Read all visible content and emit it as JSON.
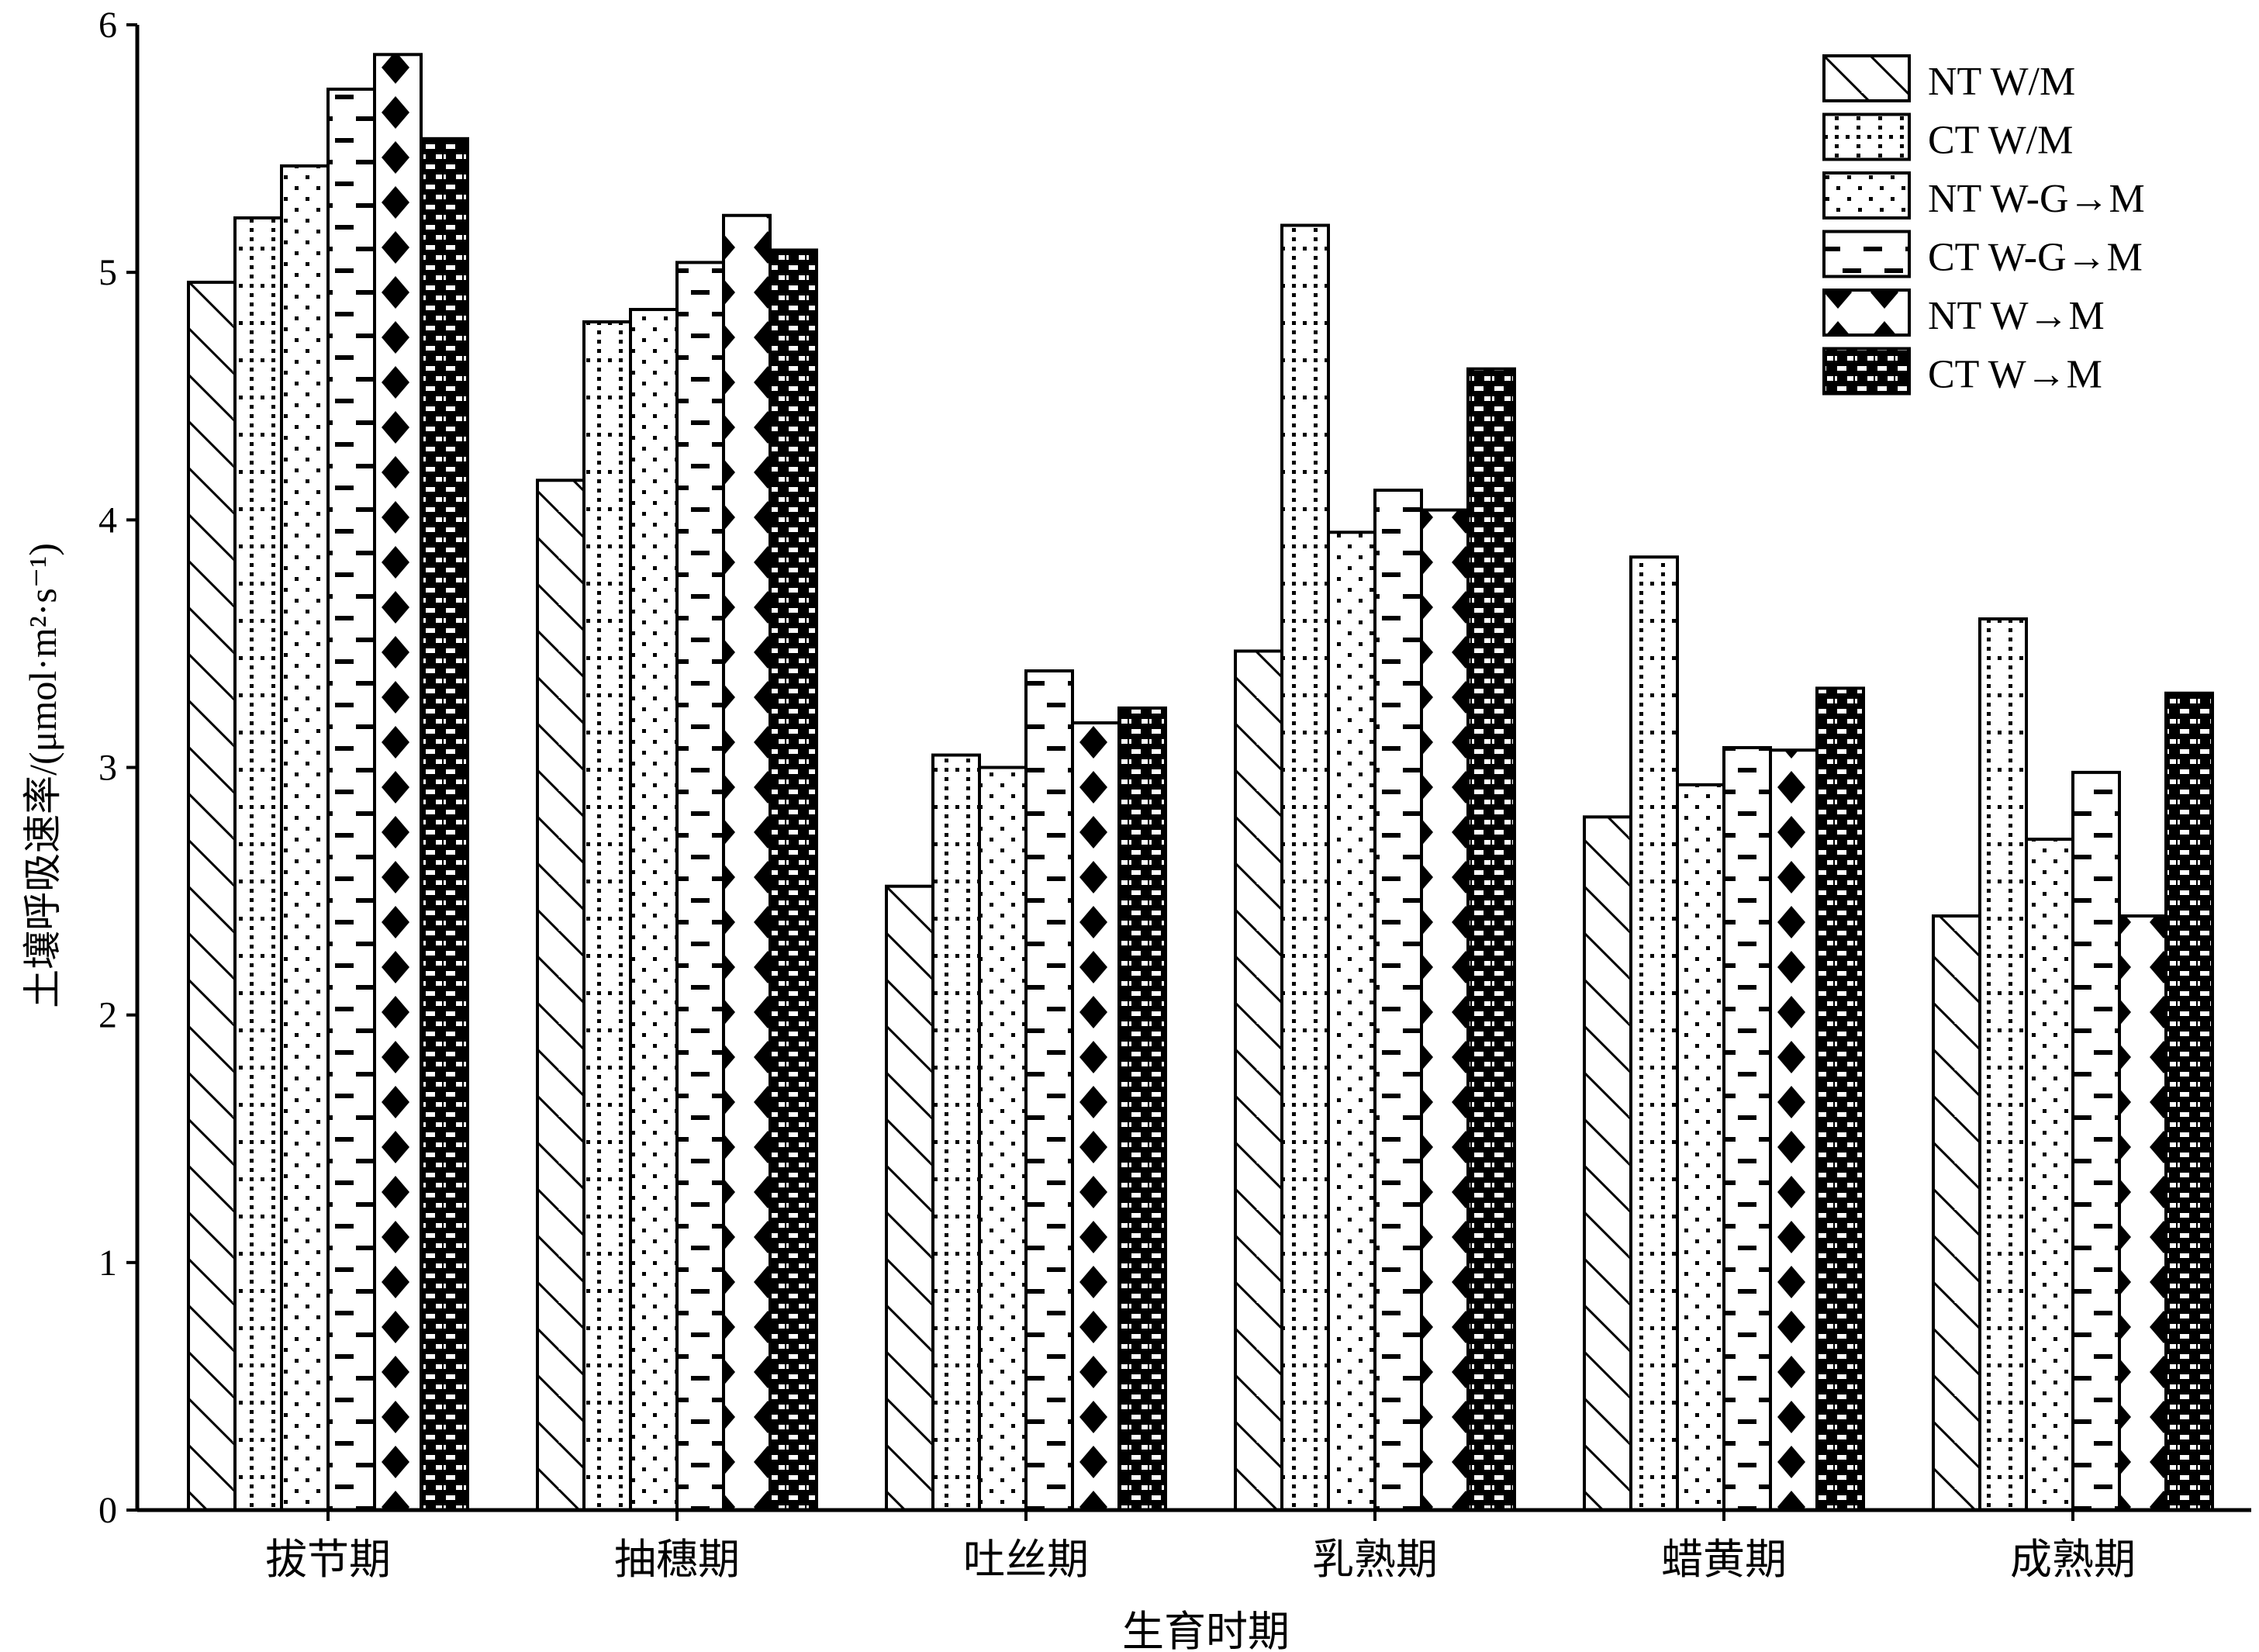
{
  "chart_data": {
    "type": "bar",
    "title": "",
    "xlabel": "生育时期",
    "ylabel": "土壤呼吸速率/(μmol·m²·s⁻¹)",
    "ylim": [
      0,
      6
    ],
    "yticks": [
      "0",
      "1",
      "2",
      "3",
      "4",
      "5",
      "6"
    ],
    "grid": false,
    "legend_position": "top-right",
    "categories": [
      "拔节期",
      "抽穗期",
      "吐丝期",
      "乳熟期",
      "蜡黄期",
      "成熟期"
    ],
    "series": [
      {
        "name": "NT W/M",
        "pattern": "diagonal",
        "values": [
          4.96,
          4.16,
          2.52,
          3.47,
          2.8,
          2.4
        ]
      },
      {
        "name": "CT W/M",
        "pattern": "dot-grid",
        "values": [
          5.22,
          4.8,
          3.05,
          5.19,
          3.85,
          3.6
        ]
      },
      {
        "name": "NT W-G→M",
        "pattern": "sparse-dots",
        "values": [
          5.43,
          4.85,
          3.0,
          3.95,
          2.93,
          2.71
        ]
      },
      {
        "name": "CT W-G→M",
        "pattern": "dashes",
        "values": [
          5.74,
          5.04,
          3.39,
          4.12,
          3.08,
          2.98
        ]
      },
      {
        "name": "NT W→M",
        "pattern": "diamonds",
        "values": [
          5.88,
          5.23,
          3.18,
          4.04,
          3.07,
          2.4
        ]
      },
      {
        "name": "CT W→M",
        "pattern": "dark-bricks",
        "values": [
          5.54,
          5.09,
          3.24,
          4.61,
          3.32,
          3.3
        ]
      }
    ]
  }
}
